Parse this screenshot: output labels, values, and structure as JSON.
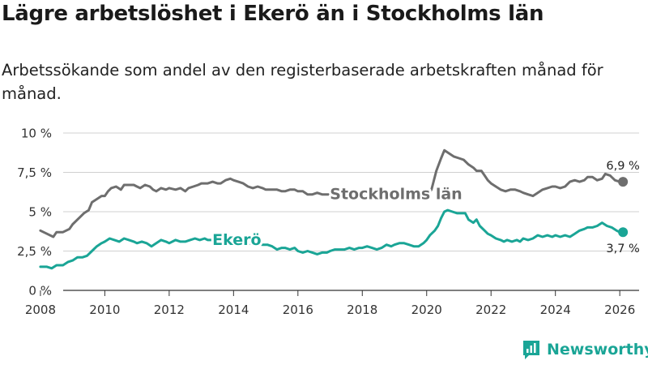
{
  "title": "Lägre arbetslöshet i Ekerö än i Stockholms län",
  "subtitle": "Arbetssökande som andel av den registerbaserade arbetskraften månad för månad.",
  "brand": {
    "name": "Newsworthy",
    "icon": "newsworthy-logo-icon"
  },
  "colors": {
    "stockholm": "#6e6e6e",
    "ekero": "#1aa596",
    "grid": "#d0d0d0",
    "text": "#222222"
  },
  "chart_data": {
    "type": "line",
    "title": "Lägre arbetslöshet i Ekerö än i Stockholms län",
    "xlabel": "",
    "ylabel": "",
    "xlim": [
      2007.7,
      2026.6
    ],
    "ylim": [
      0,
      10
    ],
    "grid": true,
    "yticks": [
      {
        "value": 0,
        "label": "0 %"
      },
      {
        "value": 2.5,
        "label": "2,5 %"
      },
      {
        "value": 5,
        "label": "5 %"
      },
      {
        "value": 7.5,
        "label": "7,5 %"
      },
      {
        "value": 10,
        "label": "10 %"
      }
    ],
    "xticks": [
      {
        "value": 2008,
        "label": "2008"
      },
      {
        "value": 2010,
        "label": "2010"
      },
      {
        "value": 2012,
        "label": "2012"
      },
      {
        "value": 2014,
        "label": "2014"
      },
      {
        "value": 2016,
        "label": "2016"
      },
      {
        "value": 2018,
        "label": "2018"
      },
      {
        "value": 2020,
        "label": "2020"
      },
      {
        "value": 2022,
        "label": "2022"
      },
      {
        "value": 2024,
        "label": "2024"
      },
      {
        "value": 2026,
        "label": "2026"
      }
    ],
    "series": [
      {
        "name": "Stockholms län",
        "color": "#6e6e6e",
        "end_label": "6,9 %",
        "points": [
          [
            2008.0,
            3.8
          ],
          [
            2008.2,
            3.6
          ],
          [
            2008.4,
            3.4
          ],
          [
            2008.5,
            3.7
          ],
          [
            2008.7,
            3.7
          ],
          [
            2008.9,
            3.9
          ],
          [
            2009.0,
            4.2
          ],
          [
            2009.2,
            4.6
          ],
          [
            2009.35,
            4.9
          ],
          [
            2009.5,
            5.1
          ],
          [
            2009.6,
            5.6
          ],
          [
            2009.75,
            5.8
          ],
          [
            2009.9,
            6.0
          ],
          [
            2010.0,
            6.0
          ],
          [
            2010.1,
            6.3
          ],
          [
            2010.2,
            6.5
          ],
          [
            2010.35,
            6.6
          ],
          [
            2010.5,
            6.4
          ],
          [
            2010.6,
            6.7
          ],
          [
            2010.75,
            6.7
          ],
          [
            2010.9,
            6.7
          ],
          [
            2011.0,
            6.6
          ],
          [
            2011.1,
            6.5
          ],
          [
            2011.25,
            6.7
          ],
          [
            2011.4,
            6.6
          ],
          [
            2011.5,
            6.4
          ],
          [
            2011.6,
            6.3
          ],
          [
            2011.75,
            6.5
          ],
          [
            2011.9,
            6.4
          ],
          [
            2012.0,
            6.5
          ],
          [
            2012.2,
            6.4
          ],
          [
            2012.35,
            6.5
          ],
          [
            2012.5,
            6.3
          ],
          [
            2012.6,
            6.5
          ],
          [
            2012.75,
            6.6
          ],
          [
            2012.9,
            6.7
          ],
          [
            2013.0,
            6.8
          ],
          [
            2013.2,
            6.8
          ],
          [
            2013.35,
            6.9
          ],
          [
            2013.5,
            6.8
          ],
          [
            2013.6,
            6.8
          ],
          [
            2013.75,
            7.0
          ],
          [
            2013.9,
            7.1
          ],
          [
            2014.0,
            7.0
          ],
          [
            2014.15,
            6.9
          ],
          [
            2014.3,
            6.8
          ],
          [
            2014.45,
            6.6
          ],
          [
            2014.6,
            6.5
          ],
          [
            2014.75,
            6.6
          ],
          [
            2014.9,
            6.5
          ],
          [
            2015.0,
            6.4
          ],
          [
            2015.2,
            6.4
          ],
          [
            2015.35,
            6.4
          ],
          [
            2015.5,
            6.3
          ],
          [
            2015.6,
            6.3
          ],
          [
            2015.75,
            6.4
          ],
          [
            2015.9,
            6.4
          ],
          [
            2016.0,
            6.3
          ],
          [
            2016.15,
            6.3
          ],
          [
            2016.3,
            6.1
          ],
          [
            2016.45,
            6.1
          ],
          [
            2016.6,
            6.2
          ],
          [
            2016.75,
            6.1
          ],
          [
            2016.9,
            6.1
          ],
          [
            2017.0,
            6.1
          ],
          [
            2017.1,
            6.0
          ],
          [
            2017.2,
            6.1
          ],
          [
            2017.3,
            6.1
          ],
          [
            2017.4,
            6.0
          ],
          [
            2017.5,
            6.1
          ],
          [
            2017.6,
            6.0
          ],
          [
            2017.7,
            6.1
          ],
          [
            2017.85,
            6.1
          ],
          [
            2018.0,
            6.1
          ],
          [
            2019.0,
            5.9
          ],
          [
            2019.3,
            5.9
          ],
          [
            2019.6,
            5.8
          ],
          [
            2019.9,
            5.9
          ],
          [
            2020.0,
            6.0
          ],
          [
            2020.15,
            6.4
          ],
          [
            2020.3,
            7.6
          ],
          [
            2020.45,
            8.4
          ],
          [
            2020.55,
            8.9
          ],
          [
            2020.7,
            8.7
          ],
          [
            2020.85,
            8.5
          ],
          [
            2021.0,
            8.4
          ],
          [
            2021.15,
            8.3
          ],
          [
            2021.3,
            8.0
          ],
          [
            2021.45,
            7.8
          ],
          [
            2021.55,
            7.6
          ],
          [
            2021.7,
            7.6
          ],
          [
            2021.8,
            7.3
          ],
          [
            2021.9,
            7.0
          ],
          [
            2022.0,
            6.8
          ],
          [
            2022.15,
            6.6
          ],
          [
            2022.3,
            6.4
          ],
          [
            2022.45,
            6.3
          ],
          [
            2022.6,
            6.4
          ],
          [
            2022.75,
            6.4
          ],
          [
            2022.9,
            6.3
          ],
          [
            2023.0,
            6.2
          ],
          [
            2023.15,
            6.1
          ],
          [
            2023.3,
            6.0
          ],
          [
            2023.45,
            6.2
          ],
          [
            2023.6,
            6.4
          ],
          [
            2023.75,
            6.5
          ],
          [
            2023.9,
            6.6
          ],
          [
            2024.0,
            6.6
          ],
          [
            2024.15,
            6.5
          ],
          [
            2024.3,
            6.6
          ],
          [
            2024.45,
            6.9
          ],
          [
            2024.6,
            7.0
          ],
          [
            2024.75,
            6.9
          ],
          [
            2024.9,
            7.0
          ],
          [
            2025.0,
            7.2
          ],
          [
            2025.15,
            7.2
          ],
          [
            2025.3,
            7.0
          ],
          [
            2025.45,
            7.1
          ],
          [
            2025.55,
            7.4
          ],
          [
            2025.7,
            7.3
          ],
          [
            2025.85,
            7.0
          ],
          [
            2026.0,
            6.9
          ],
          [
            2026.1,
            6.9
          ]
        ]
      },
      {
        "name": "Ekerö",
        "color": "#1aa596",
        "end_label": "3,7 %",
        "points": [
          [
            2008.0,
            1.5
          ],
          [
            2008.2,
            1.5
          ],
          [
            2008.35,
            1.4
          ],
          [
            2008.5,
            1.6
          ],
          [
            2008.7,
            1.6
          ],
          [
            2008.85,
            1.8
          ],
          [
            2009.0,
            1.9
          ],
          [
            2009.15,
            2.1
          ],
          [
            2009.3,
            2.1
          ],
          [
            2009.45,
            2.2
          ],
          [
            2009.6,
            2.5
          ],
          [
            2009.75,
            2.8
          ],
          [
            2009.9,
            3.0
          ],
          [
            2010.0,
            3.1
          ],
          [
            2010.15,
            3.3
          ],
          [
            2010.3,
            3.2
          ],
          [
            2010.45,
            3.1
          ],
          [
            2010.6,
            3.3
          ],
          [
            2010.75,
            3.2
          ],
          [
            2010.9,
            3.1
          ],
          [
            2011.0,
            3.0
          ],
          [
            2011.15,
            3.1
          ],
          [
            2011.3,
            3.0
          ],
          [
            2011.45,
            2.8
          ],
          [
            2011.6,
            3.0
          ],
          [
            2011.75,
            3.2
          ],
          [
            2011.9,
            3.1
          ],
          [
            2012.0,
            3.0
          ],
          [
            2012.2,
            3.2
          ],
          [
            2012.35,
            3.1
          ],
          [
            2012.5,
            3.1
          ],
          [
            2012.65,
            3.2
          ],
          [
            2012.8,
            3.3
          ],
          [
            2012.95,
            3.2
          ],
          [
            2013.1,
            3.3
          ],
          [
            2013.2,
            3.2
          ],
          [
            2013.3,
            3.2
          ],
          [
            2014.9,
            2.9
          ],
          [
            2015.05,
            2.9
          ],
          [
            2015.2,
            2.8
          ],
          [
            2015.35,
            2.6
          ],
          [
            2015.5,
            2.7
          ],
          [
            2015.6,
            2.7
          ],
          [
            2015.75,
            2.6
          ],
          [
            2015.9,
            2.7
          ],
          [
            2016.0,
            2.5
          ],
          [
            2016.15,
            2.4
          ],
          [
            2016.3,
            2.5
          ],
          [
            2016.45,
            2.4
          ],
          [
            2016.6,
            2.3
          ],
          [
            2016.75,
            2.4
          ],
          [
            2016.9,
            2.4
          ],
          [
            2017.0,
            2.5
          ],
          [
            2017.15,
            2.6
          ],
          [
            2017.3,
            2.6
          ],
          [
            2017.45,
            2.6
          ],
          [
            2017.6,
            2.7
          ],
          [
            2017.75,
            2.6
          ],
          [
            2017.9,
            2.7
          ],
          [
            2018.0,
            2.7
          ],
          [
            2018.15,
            2.8
          ],
          [
            2018.3,
            2.7
          ],
          [
            2018.45,
            2.6
          ],
          [
            2018.6,
            2.7
          ],
          [
            2018.75,
            2.9
          ],
          [
            2018.9,
            2.8
          ],
          [
            2019.0,
            2.9
          ],
          [
            2019.15,
            3.0
          ],
          [
            2019.3,
            3.0
          ],
          [
            2019.45,
            2.9
          ],
          [
            2019.6,
            2.8
          ],
          [
            2019.75,
            2.8
          ],
          [
            2019.9,
            3.0
          ],
          [
            2020.0,
            3.2
          ],
          [
            2020.1,
            3.5
          ],
          [
            2020.25,
            3.8
          ],
          [
            2020.35,
            4.1
          ],
          [
            2020.45,
            4.6
          ],
          [
            2020.55,
            5.0
          ],
          [
            2020.65,
            5.1
          ],
          [
            2020.8,
            5.0
          ],
          [
            2020.95,
            4.9
          ],
          [
            2021.05,
            4.9
          ],
          [
            2021.2,
            4.9
          ],
          [
            2021.3,
            4.5
          ],
          [
            2021.45,
            4.3
          ],
          [
            2021.55,
            4.5
          ],
          [
            2021.65,
            4.1
          ],
          [
            2021.8,
            3.8
          ],
          [
            2021.9,
            3.6
          ],
          [
            2022.0,
            3.5
          ],
          [
            2022.15,
            3.3
          ],
          [
            2022.3,
            3.2
          ],
          [
            2022.4,
            3.1
          ],
          [
            2022.5,
            3.2
          ],
          [
            2022.65,
            3.1
          ],
          [
            2022.8,
            3.2
          ],
          [
            2022.9,
            3.1
          ],
          [
            2023.0,
            3.3
          ],
          [
            2023.15,
            3.2
          ],
          [
            2023.3,
            3.3
          ],
          [
            2023.45,
            3.5
          ],
          [
            2023.6,
            3.4
          ],
          [
            2023.75,
            3.5
          ],
          [
            2023.9,
            3.4
          ],
          [
            2024.0,
            3.5
          ],
          [
            2024.15,
            3.4
          ],
          [
            2024.3,
            3.5
          ],
          [
            2024.45,
            3.4
          ],
          [
            2024.6,
            3.6
          ],
          [
            2024.75,
            3.8
          ],
          [
            2024.9,
            3.9
          ],
          [
            2025.0,
            4.0
          ],
          [
            2025.15,
            4.0
          ],
          [
            2025.3,
            4.1
          ],
          [
            2025.45,
            4.3
          ],
          [
            2025.6,
            4.1
          ],
          [
            2025.75,
            4.0
          ],
          [
            2025.9,
            3.8
          ],
          [
            2026.0,
            3.7
          ],
          [
            2026.1,
            3.7
          ]
        ]
      }
    ],
    "annotations": [
      {
        "text": "Stockholms län",
        "series": "Stockholms län",
        "x": 2019.05,
        "y": 6.1
      },
      {
        "text": "Ekerö",
        "series": "Ekerö",
        "x": 2014.1,
        "y": 3.2
      }
    ]
  }
}
